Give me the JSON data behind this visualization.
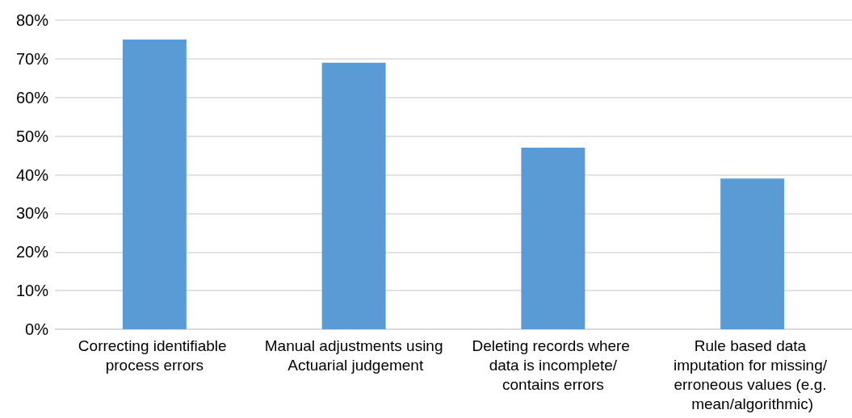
{
  "chart_data": {
    "type": "bar",
    "categories": [
      "Correcting identifiable process errors",
      "Manual adjustments using Actuarial judgement",
      "Deleting records where data is incomplete/contains errors",
      "Rule based data imputation for missing/ erroneous values (e.g. mean/algorithmic)"
    ],
    "values": [
      75,
      69,
      47,
      39
    ],
    "color": "#5b9bd5",
    "ylim": [
      0,
      80
    ],
    "yticks": [
      {
        "value": 0,
        "label": "0%"
      },
      {
        "value": 10,
        "label": "10%"
      },
      {
        "value": 20,
        "label": "20%"
      },
      {
        "value": 30,
        "label": "30%"
      },
      {
        "value": 40,
        "label": "40%"
      },
      {
        "value": 50,
        "label": "50%"
      },
      {
        "value": 60,
        "label": "60%"
      },
      {
        "value": 70,
        "label": "70%"
      },
      {
        "value": 80,
        "label": "80%"
      }
    ],
    "grid": "y"
  }
}
